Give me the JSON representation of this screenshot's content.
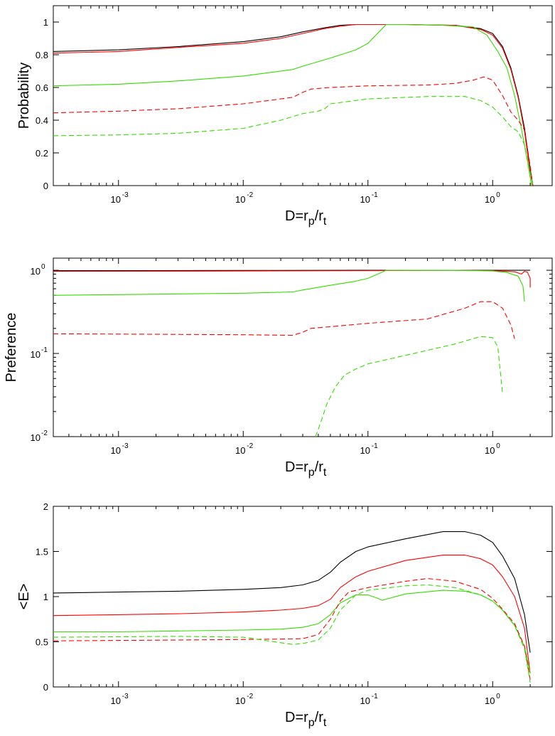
{
  "colors": {
    "black": "#000000",
    "red": "#ff0000",
    "green": "#33dd00"
  },
  "chart_data": [
    {
      "type": "line",
      "xscale": "log",
      "yscale": "linear",
      "xlim": [
        0.0003,
        3.0
      ],
      "ylim": [
        0,
        1.1
      ],
      "xlabel": "D=r",
      "xlabel_sub_p": "p",
      "xlabel_slash": "/r",
      "xlabel_sub_t": "t",
      "ylabel": "Probability",
      "xticks": [
        {
          "value": 0.001,
          "label": "10",
          "exp": "-3"
        },
        {
          "value": 0.01,
          "label": "10",
          "exp": "-2"
        },
        {
          "value": 0.1,
          "label": "10",
          "exp": "-1"
        },
        {
          "value": 1,
          "label": "10",
          "exp": "0"
        }
      ],
      "yticks": [
        {
          "value": 0,
          "label": "0"
        },
        {
          "value": 0.2,
          "label": "0.2"
        },
        {
          "value": 0.4,
          "label": "0.4"
        },
        {
          "value": 0.6,
          "label": "0.6"
        },
        {
          "value": 0.8,
          "label": "0.8"
        },
        {
          "value": 1,
          "label": "1"
        }
      ],
      "series": [
        {
          "name": "black solid",
          "color": "black",
          "dash": "solid",
          "x": [
            0.0003,
            0.001,
            0.003,
            0.01,
            0.02,
            0.03,
            0.045,
            0.06,
            0.08,
            0.1,
            0.2,
            0.5,
            0.8,
            1.0,
            1.2,
            1.4,
            1.6,
            1.8,
            2.0,
            2.1
          ],
          "y": [
            0.82,
            0.83,
            0.85,
            0.88,
            0.91,
            0.94,
            0.965,
            0.98,
            0.985,
            0.985,
            0.985,
            0.98,
            0.96,
            0.93,
            0.85,
            0.72,
            0.55,
            0.35,
            0.1,
            0
          ]
        },
        {
          "name": "red solid",
          "color": "red",
          "dash": "solid",
          "x": [
            0.0003,
            0.001,
            0.003,
            0.01,
            0.02,
            0.03,
            0.045,
            0.06,
            0.08,
            0.1,
            0.2,
            0.5,
            0.8,
            1.0,
            1.2,
            1.4,
            1.6,
            1.8,
            2.0,
            2.1
          ],
          "y": [
            0.81,
            0.82,
            0.845,
            0.87,
            0.9,
            0.93,
            0.96,
            0.975,
            0.985,
            0.985,
            0.985,
            0.98,
            0.955,
            0.92,
            0.84,
            0.71,
            0.54,
            0.33,
            0.08,
            0
          ]
        },
        {
          "name": "green solid",
          "color": "green",
          "dash": "solid",
          "x": [
            0.0003,
            0.001,
            0.003,
            0.01,
            0.025,
            0.03,
            0.05,
            0.08,
            0.1,
            0.13,
            0.14,
            0.2,
            0.4,
            0.7,
            0.9,
            1.1,
            1.3,
            1.5,
            1.7,
            1.9,
            2.05
          ],
          "y": [
            0.61,
            0.62,
            0.64,
            0.67,
            0.71,
            0.73,
            0.78,
            0.83,
            0.87,
            0.96,
            0.985,
            0.985,
            0.98,
            0.97,
            0.92,
            0.82,
            0.72,
            0.55,
            0.35,
            0.15,
            0
          ]
        },
        {
          "name": "red dashed",
          "color": "red",
          "dash": "dashed",
          "x": [
            0.0003,
            0.001,
            0.003,
            0.01,
            0.02,
            0.025,
            0.03,
            0.035,
            0.05,
            0.1,
            0.3,
            0.5,
            0.7,
            0.85,
            1.0,
            1.2,
            1.4,
            1.6,
            1.8,
            2.0,
            2.1
          ],
          "y": [
            0.445,
            0.455,
            0.47,
            0.5,
            0.53,
            0.54,
            0.57,
            0.59,
            0.6,
            0.61,
            0.615,
            0.625,
            0.645,
            0.665,
            0.645,
            0.55,
            0.45,
            0.4,
            0.34,
            0.12,
            0
          ]
        },
        {
          "name": "green dashed",
          "color": "green",
          "dash": "dashed",
          "x": [
            0.0003,
            0.001,
            0.003,
            0.01,
            0.02,
            0.03,
            0.04,
            0.045,
            0.05,
            0.1,
            0.3,
            0.6,
            0.8,
            1.0,
            1.2,
            1.4,
            1.6,
            1.8,
            2.0,
            2.1
          ],
          "y": [
            0.305,
            0.31,
            0.32,
            0.35,
            0.4,
            0.44,
            0.455,
            0.47,
            0.5,
            0.53,
            0.545,
            0.545,
            0.52,
            0.48,
            0.42,
            0.36,
            0.33,
            0.25,
            0.08,
            0
          ]
        }
      ]
    },
    {
      "type": "line",
      "xscale": "log",
      "yscale": "log",
      "xlim": [
        0.0003,
        3.0
      ],
      "ylim": [
        0.01,
        1.4
      ],
      "xlabel": "D=r",
      "xlabel_sub_p": "p",
      "xlabel_slash": "/r",
      "xlabel_sub_t": "t",
      "ylabel": "Preference",
      "xticks": [
        {
          "value": 0.001,
          "label": "10",
          "exp": "-3"
        },
        {
          "value": 0.01,
          "label": "10",
          "exp": "-2"
        },
        {
          "value": 0.1,
          "label": "10",
          "exp": "-1"
        },
        {
          "value": 1,
          "label": "10",
          "exp": "0"
        }
      ],
      "yticks": [
        {
          "value": 0.01,
          "label": "10",
          "exp": "-2"
        },
        {
          "value": 0.1,
          "label": "10",
          "exp": "-1"
        },
        {
          "value": 1,
          "label": "10",
          "exp": "0"
        }
      ],
      "series": [
        {
          "name": "black solid",
          "color": "black",
          "dash": "solid",
          "x": [
            0.0003,
            0.01,
            0.1,
            1.0,
            2.0
          ],
          "y": [
            0.99,
            0.995,
            1.0,
            1.0,
            1.0
          ]
        },
        {
          "name": "red solid",
          "color": "red",
          "dash": "solid",
          "x": [
            0.0003,
            0.01,
            0.1,
            0.5,
            1.0,
            1.5,
            1.7,
            1.8,
            1.9,
            2.0,
            2.0
          ],
          "y": [
            0.97,
            0.98,
            0.99,
            1.0,
            0.99,
            0.96,
            0.9,
            0.97,
            0.95,
            0.8,
            0.62
          ]
        },
        {
          "name": "green solid",
          "color": "green",
          "dash": "solid",
          "x": [
            0.0003,
            0.001,
            0.01,
            0.025,
            0.03,
            0.05,
            0.08,
            0.1,
            0.13,
            0.14,
            0.5,
            1.0,
            1.3,
            1.6,
            1.75,
            1.8
          ],
          "y": [
            0.5,
            0.51,
            0.53,
            0.55,
            0.58,
            0.66,
            0.74,
            0.8,
            0.95,
            1.0,
            1.0,
            0.98,
            0.94,
            0.85,
            0.65,
            0.42
          ]
        },
        {
          "name": "red dashed",
          "color": "red",
          "dash": "dashed",
          "x": [
            0.0003,
            0.001,
            0.01,
            0.025,
            0.03,
            0.035,
            0.05,
            0.1,
            0.3,
            0.6,
            0.8,
            1.0,
            1.2,
            1.4,
            1.5
          ],
          "y": [
            0.172,
            0.171,
            0.168,
            0.165,
            0.18,
            0.2,
            0.21,
            0.23,
            0.26,
            0.35,
            0.42,
            0.42,
            0.35,
            0.22,
            0.15
          ]
        },
        {
          "name": "green dashed",
          "color": "green",
          "dash": "dashed",
          "x": [
            0.038,
            0.042,
            0.047,
            0.055,
            0.065,
            0.08,
            0.1,
            0.2,
            0.5,
            0.8,
            1.0,
            1.1,
            1.2
          ],
          "y": [
            0.01,
            0.015,
            0.025,
            0.04,
            0.055,
            0.065,
            0.075,
            0.095,
            0.13,
            0.16,
            0.155,
            0.12,
            0.033
          ]
        }
      ]
    },
    {
      "type": "line",
      "xscale": "log",
      "yscale": "linear",
      "xlim": [
        0.0003,
        3.0
      ],
      "ylim": [
        0,
        2
      ],
      "xlabel": "D=r",
      "xlabel_sub_p": "p",
      "xlabel_slash": "/r",
      "xlabel_sub_t": "t",
      "ylabel": "<E>",
      "xticks": [
        {
          "value": 0.001,
          "label": "10",
          "exp": "-3"
        },
        {
          "value": 0.01,
          "label": "10",
          "exp": "-2"
        },
        {
          "value": 0.1,
          "label": "10",
          "exp": "-1"
        },
        {
          "value": 1,
          "label": "10",
          "exp": "0"
        }
      ],
      "yticks": [
        {
          "value": 0,
          "label": "0"
        },
        {
          "value": 0.5,
          "label": "0.5"
        },
        {
          "value": 1,
          "label": "1"
        },
        {
          "value": 1.5,
          "label": "1.5"
        },
        {
          "value": 2,
          "label": "2"
        }
      ],
      "series": [
        {
          "name": "black solid",
          "color": "black",
          "dash": "solid",
          "x": [
            0.0003,
            0.001,
            0.003,
            0.01,
            0.02,
            0.03,
            0.04,
            0.05,
            0.06,
            0.08,
            0.1,
            0.2,
            0.4,
            0.6,
            0.8,
            1.0,
            1.2,
            1.5,
            1.8,
            2.0
          ],
          "y": [
            1.04,
            1.05,
            1.06,
            1.08,
            1.1,
            1.13,
            1.18,
            1.27,
            1.38,
            1.5,
            1.55,
            1.64,
            1.72,
            1.72,
            1.68,
            1.6,
            1.45,
            1.2,
            0.8,
            0.38
          ]
        },
        {
          "name": "red solid",
          "color": "red",
          "dash": "solid",
          "x": [
            0.0003,
            0.001,
            0.003,
            0.01,
            0.02,
            0.03,
            0.04,
            0.05,
            0.06,
            0.08,
            0.1,
            0.2,
            0.4,
            0.6,
            0.8,
            1.0,
            1.2,
            1.5,
            1.8,
            2.0
          ],
          "y": [
            0.79,
            0.8,
            0.81,
            0.83,
            0.85,
            0.87,
            0.9,
            0.97,
            1.1,
            1.22,
            1.28,
            1.4,
            1.46,
            1.46,
            1.42,
            1.35,
            1.22,
            1.0,
            0.65,
            0.15
          ]
        },
        {
          "name": "green solid",
          "color": "green",
          "dash": "solid",
          "x": [
            0.0003,
            0.001,
            0.003,
            0.01,
            0.02,
            0.03,
            0.04,
            0.05,
            0.06,
            0.08,
            0.1,
            0.12,
            0.13,
            0.2,
            0.4,
            0.6,
            0.8,
            1.0,
            1.2,
            1.5,
            1.8,
            2.0
          ],
          "y": [
            0.61,
            0.61,
            0.62,
            0.63,
            0.64,
            0.66,
            0.7,
            0.8,
            0.93,
            1.02,
            1.02,
            0.98,
            0.96,
            1.03,
            1.07,
            1.06,
            1.02,
            0.95,
            0.85,
            0.68,
            0.45,
            0.15
          ]
        },
        {
          "name": "red dashed",
          "color": "red",
          "dash": "dashed",
          "x": [
            0.0003,
            0.001,
            0.003,
            0.01,
            0.02,
            0.03,
            0.04,
            0.05,
            0.06,
            0.07,
            0.1,
            0.2,
            0.3,
            0.5,
            0.8,
            1.0,
            1.2,
            1.5,
            1.8,
            2.0
          ],
          "y": [
            0.51,
            0.515,
            0.52,
            0.525,
            0.53,
            0.535,
            0.58,
            0.75,
            0.95,
            1.05,
            1.1,
            1.17,
            1.2,
            1.17,
            1.08,
            0.98,
            0.86,
            0.7,
            0.45,
            0.08
          ]
        },
        {
          "name": "green dashed",
          "color": "green",
          "dash": "dashed",
          "x": [
            0.0003,
            0.001,
            0.003,
            0.01,
            0.02,
            0.025,
            0.03,
            0.04,
            0.05,
            0.06,
            0.08,
            0.1,
            0.2,
            0.3,
            0.5,
            0.8,
            1.0,
            1.2,
            1.5,
            1.8,
            2.0
          ],
          "y": [
            0.55,
            0.555,
            0.56,
            0.55,
            0.49,
            0.47,
            0.48,
            0.52,
            0.65,
            0.85,
            1.02,
            1.07,
            1.12,
            1.13,
            1.1,
            1.02,
            0.95,
            0.85,
            0.68,
            0.42,
            0.05
          ]
        }
      ]
    }
  ]
}
